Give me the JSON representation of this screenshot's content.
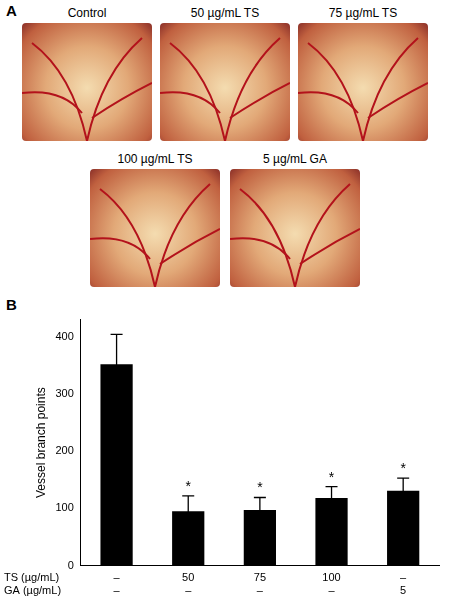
{
  "panel_a": {
    "label": "A",
    "captions": [
      "Control",
      "50 µg/mL TS",
      "75 µg/mL TS",
      "100 µg/mL TS",
      "5 µg/mL GA"
    ]
  },
  "chart_data": {
    "panel_label": "B",
    "type": "bar",
    "categories": [
      [
        "–",
        "–"
      ],
      [
        "50",
        "–"
      ],
      [
        "75",
        "–"
      ],
      [
        "100",
        "–"
      ],
      [
        "–",
        "5"
      ]
    ],
    "row_labels": [
      "TS (µg/mL)",
      "GA (µg/mL)"
    ],
    "values": [
      352,
      95,
      97,
      118,
      131
    ],
    "errors": [
      52,
      27,
      22,
      20,
      22
    ],
    "annotations": [
      null,
      "*",
      "*",
      "*",
      "*"
    ],
    "color": "#000000",
    "y_label": "Vessel branch points",
    "ylim": [
      0,
      430
    ],
    "yticks": [
      0,
      100,
      200,
      300,
      400
    ],
    "grid": false
  }
}
